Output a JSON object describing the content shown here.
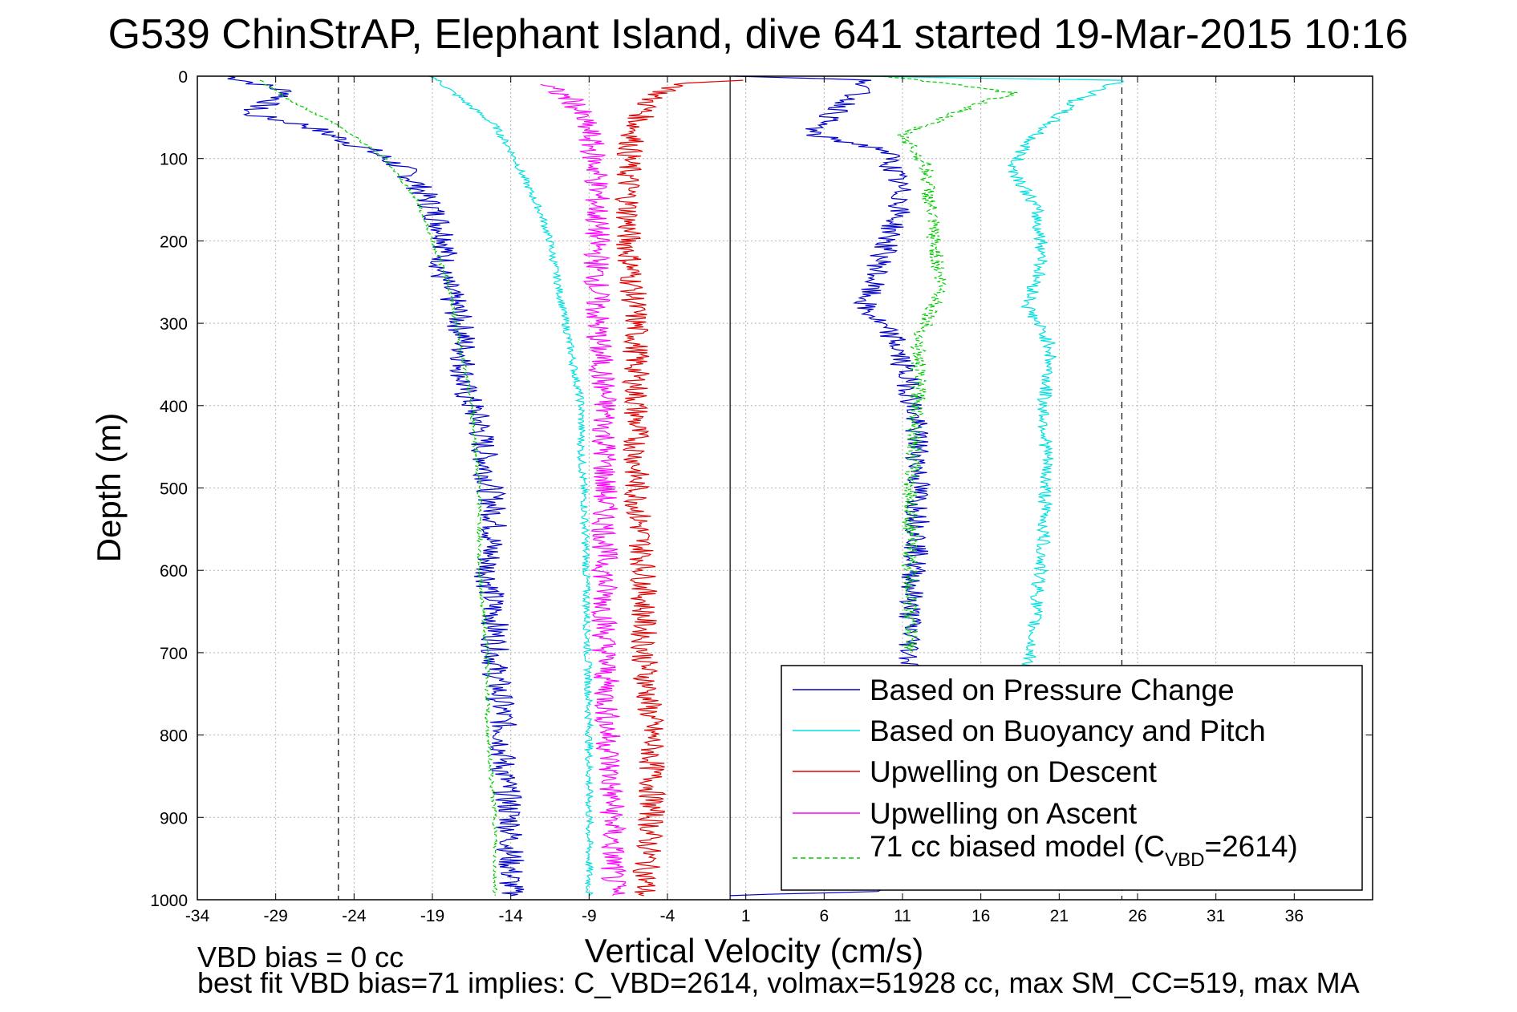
{
  "chart_data": {
    "type": "line",
    "title": "G539 ChinStrAP, Elephant Island, dive 641 started 19-Mar-2015 10:16",
    "xlabel": "Vertical Velocity (cm/s)",
    "ylabel": "Depth (m)",
    "xlim": [
      -34,
      41
    ],
    "ylim": [
      0,
      1000
    ],
    "y_reversed": true,
    "grid": true,
    "xticks": [
      -34,
      -29,
      -24,
      -19,
      -14,
      -9,
      -4,
      1,
      6,
      11,
      16,
      21,
      26,
      31,
      36
    ],
    "yticks": [
      0,
      100,
      200,
      300,
      400,
      500,
      600,
      700,
      800,
      900,
      1000
    ],
    "reference_lines": [
      {
        "x": -25,
        "style": "dashed"
      },
      {
        "x": 0,
        "style": "solid"
      },
      {
        "x": 25,
        "style": "dashed"
      }
    ],
    "legend": {
      "position": "bottom-right",
      "entries": [
        {
          "label": "Based on Pressure Change",
          "color": "#0000c8",
          "style": "solid"
        },
        {
          "label": "Based on Buoyancy and Pitch",
          "color": "#00e0e0",
          "style": "solid"
        },
        {
          "label": "Upwelling on Descent",
          "color": "#e00000",
          "style": "solid"
        },
        {
          "label": "Upwelling on Ascent",
          "color": "#ff00ff",
          "style": "solid"
        },
        {
          "label_main": "71 cc biased model (C",
          "label_sub": "VBD",
          "label_end": "=2614)",
          "color": "#00cc00",
          "style": "dashed"
        }
      ]
    },
    "series": [
      {
        "color": "#0000c8",
        "noise": 0.9,
        "points": [
          [
            -32,
            0
          ],
          [
            -28,
            20
          ],
          [
            -31,
            45
          ],
          [
            -27,
            60
          ],
          [
            -23,
            90
          ],
          [
            -21,
            110
          ],
          [
            -20,
            130
          ],
          [
            -19,
            160
          ],
          [
            -18,
            200
          ],
          [
            -18.5,
            240
          ],
          [
            -17.5,
            280
          ],
          [
            -17,
            320
          ],
          [
            -17,
            380
          ],
          [
            -16,
            420
          ],
          [
            -15.5,
            480
          ],
          [
            -15,
            540
          ],
          [
            -15.5,
            600
          ],
          [
            -15,
            660
          ],
          [
            -15,
            720
          ],
          [
            -14.5,
            780
          ],
          [
            -14.5,
            840
          ],
          [
            -14,
            900
          ],
          [
            -14,
            960
          ],
          [
            -14,
            995
          ]
        ]
      },
      {
        "color": "#00e0e0",
        "noise": 0.25,
        "points": [
          [
            -19,
            0
          ],
          [
            -17,
            30
          ],
          [
            -15,
            60
          ],
          [
            -14,
            90
          ],
          [
            -13,
            130
          ],
          [
            -12,
            170
          ],
          [
            -11.5,
            200
          ],
          [
            -11,
            250
          ],
          [
            -10.5,
            300
          ],
          [
            -10,
            350
          ],
          [
            -9.5,
            400
          ],
          [
            -9.5,
            460
          ],
          [
            -9.3,
            520
          ],
          [
            -9.2,
            600
          ],
          [
            -9.1,
            700
          ],
          [
            -9.0,
            800
          ],
          [
            -9.0,
            900
          ],
          [
            -9.0,
            995
          ]
        ]
      },
      {
        "color": "#e00000",
        "noise": 0.85,
        "points": [
          [
            0,
            5
          ],
          [
            -3,
            10
          ],
          [
            -5,
            25
          ],
          [
            -6,
            60
          ],
          [
            -6.5,
            100
          ],
          [
            -6.5,
            200
          ],
          [
            -6,
            300
          ],
          [
            -6,
            400
          ],
          [
            -6,
            500
          ],
          [
            -5.5,
            600
          ],
          [
            -5.5,
            700
          ],
          [
            -5,
            800
          ],
          [
            -5,
            900
          ],
          [
            -5.5,
            995
          ]
        ]
      },
      {
        "color": "#ff00ff",
        "noise": 0.85,
        "points": [
          [
            -12,
            10
          ],
          [
            -10,
            30
          ],
          [
            -9,
            70
          ],
          [
            -8.5,
            120
          ],
          [
            -8.5,
            200
          ],
          [
            -8.5,
            300
          ],
          [
            -8,
            400
          ],
          [
            -8,
            500
          ],
          [
            -8,
            600
          ],
          [
            -8,
            700
          ],
          [
            -7.8,
            800
          ],
          [
            -7.5,
            900
          ],
          [
            -7.5,
            995
          ]
        ]
      },
      {
        "color": "#00cc00",
        "noise": 0.15,
        "dashed": true,
        "points": [
          [
            -30,
            5
          ],
          [
            -28,
            30
          ],
          [
            -25,
            60
          ],
          [
            -22,
            100
          ],
          [
            -20,
            150
          ],
          [
            -19,
            200
          ],
          [
            -18,
            250
          ],
          [
            -17.5,
            300
          ],
          [
            -17,
            350
          ],
          [
            -16.5,
            400
          ],
          [
            -16,
            500
          ],
          [
            -16,
            600
          ],
          [
            -15.5,
            700
          ],
          [
            -15.5,
            800
          ],
          [
            -15,
            900
          ],
          [
            -15,
            995
          ]
        ]
      },
      {
        "color": "#0000c8",
        "noise": 0.8,
        "points": [
          [
            0,
            0
          ],
          [
            9,
            5
          ],
          [
            7,
            40
          ],
          [
            5,
            70
          ],
          [
            10,
            90
          ],
          [
            11,
            150
          ],
          [
            9.5,
            230
          ],
          [
            8.5,
            280
          ],
          [
            10.5,
            320
          ],
          [
            11.5,
            380
          ],
          [
            12,
            450
          ],
          [
            12,
            550
          ],
          [
            11.5,
            650
          ],
          [
            11.5,
            720
          ],
          [
            9,
            990
          ],
          [
            0,
            995
          ]
        ]
      },
      {
        "color": "#00e0e0",
        "noise": 0.45,
        "points": [
          [
            8,
            0
          ],
          [
            25,
            5
          ],
          [
            22,
            30
          ],
          [
            19,
            80
          ],
          [
            18,
            110
          ],
          [
            19.5,
            160
          ],
          [
            20,
            220
          ],
          [
            19,
            280
          ],
          [
            20.5,
            330
          ],
          [
            20,
            400
          ],
          [
            20.2,
            460
          ],
          [
            20,
            560
          ],
          [
            19.5,
            650
          ],
          [
            19,
            720
          ]
        ]
      },
      {
        "color": "#00cc00",
        "noise": 0.5,
        "dashed": true,
        "points": [
          [
            10,
            0
          ],
          [
            18,
            20
          ],
          [
            15,
            40
          ],
          [
            11,
            70
          ],
          [
            12.5,
            110
          ],
          [
            13,
            200
          ],
          [
            13.5,
            260
          ],
          [
            12,
            320
          ],
          [
            12,
            400
          ],
          [
            11.5,
            500
          ],
          [
            11.5,
            600
          ],
          [
            11.5,
            700
          ]
        ]
      }
    ]
  },
  "annotations": {
    "vbd_bias": "VBD bias = 0 cc",
    "best_fit": "best fit VBD bias=71 implies: C_VBD=2614, volmax=51928 cc, max SM_CC=519, max MA"
  },
  "colors": {
    "background": "#ffffff",
    "axis": "#000000",
    "grid": "#b4b4b4"
  }
}
